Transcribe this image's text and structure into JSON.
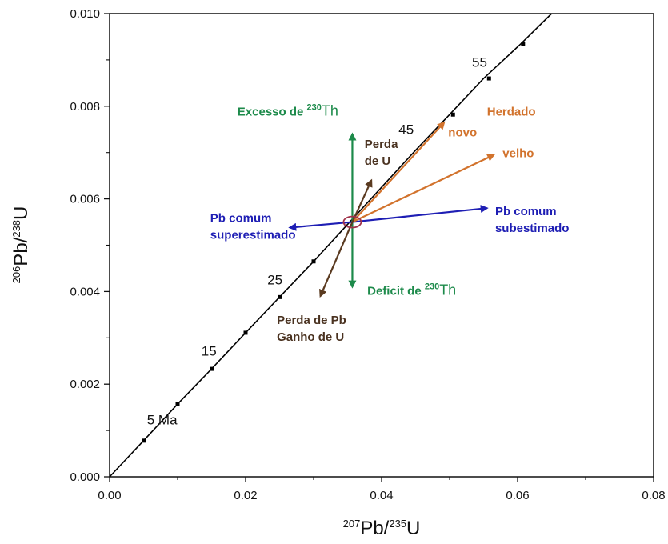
{
  "chart_data": {
    "type": "line",
    "title": "",
    "xlabel": {
      "sup": "207",
      "text": "Pb/",
      "sup2": "235",
      "text2": "U"
    },
    "ylabel": {
      "sup": "206",
      "text": "Pb/",
      "sup2": "238",
      "text2": "U"
    },
    "xlim": [
      0.0,
      0.08
    ],
    "ylim": [
      0.0,
      0.01
    ],
    "x_ticks": [
      "0.00",
      "0.02",
      "0.04",
      "0.06",
      "0.08"
    ],
    "y_ticks": [
      "0.000",
      "0.002",
      "0.004",
      "0.006",
      "0.008",
      "0.010"
    ],
    "grid": false,
    "concordia": {
      "x": [
        0.0,
        0.005,
        0.01,
        0.015,
        0.02,
        0.025,
        0.03,
        0.035,
        0.04,
        0.045,
        0.05,
        0.055,
        0.0605,
        0.065
      ],
      "y": [
        0.0,
        0.00078,
        0.00157,
        0.00233,
        0.00311,
        0.00388,
        0.00465,
        0.00545,
        0.00625,
        0.00705,
        0.00782,
        0.0086,
        0.00935,
        0.01
      ]
    },
    "ticks_on_curve": [
      [
        0.005,
        0.00078
      ],
      [
        0.01,
        0.00157
      ],
      [
        0.015,
        0.00233
      ],
      [
        0.02,
        0.00311
      ],
      [
        0.025,
        0.00388
      ],
      [
        0.03,
        0.00465
      ],
      [
        0.0505,
        0.00782
      ],
      [
        0.0558,
        0.0086
      ],
      [
        0.0608,
        0.00935
      ]
    ],
    "age_labels": [
      {
        "text": "5 Ma",
        "x": 0.0055,
        "y": 0.00113
      },
      {
        "text": "15",
        "x": 0.0135,
        "y": 0.00262
      },
      {
        "text": "25",
        "x": 0.0232,
        "y": 0.00415
      },
      {
        "text": "45",
        "x": 0.0425,
        "y": 0.0074
      },
      {
        "text": "55",
        "x": 0.0533,
        "y": 0.00885
      }
    ],
    "ellipse": {
      "cx": 0.0357,
      "cy": 0.0055,
      "rx": 0.0013,
      "ry": 0.00012,
      "color": "#a0324a"
    },
    "vectors": [
      {
        "color": "#1c8a4a",
        "from": [
          0.0357,
          0.0055
        ],
        "to": [
          0.0357,
          0.0074
        ]
      },
      {
        "color": "#1c8a4a",
        "from": [
          0.0357,
          0.0055
        ],
        "to": [
          0.0357,
          0.0041
        ]
      },
      {
        "color": "#1e1eb4",
        "from": [
          0.0357,
          0.0055
        ],
        "to": [
          0.0555,
          0.0058
        ]
      },
      {
        "color": "#1e1eb4",
        "from": [
          0.0357,
          0.0055
        ],
        "to": [
          0.0265,
          0.00538
        ]
      },
      {
        "color": "#d2732d",
        "from": [
          0.0357,
          0.0055
        ],
        "to": [
          0.0492,
          0.00765
        ]
      },
      {
        "color": "#d2732d",
        "from": [
          0.0357,
          0.0055
        ],
        "to": [
          0.0565,
          0.00695
        ]
      },
      {
        "color": "#5a3a20",
        "from": [
          0.0357,
          0.0055
        ],
        "to": [
          0.0385,
          0.0064
        ]
      },
      {
        "color": "#5a3a20",
        "from": [
          0.0357,
          0.0055
        ],
        "to": [
          0.031,
          0.0039
        ]
      }
    ],
    "annotations": [
      {
        "lines": [
          "Excesso de "
        ],
        "sup": "230",
        "tail": "Th",
        "color": "#1c8a4a",
        "x": 0.0188,
        "y": 0.0078
      },
      {
        "lines": [
          "Deficit de "
        ],
        "sup": "230",
        "tail": "Th",
        "color": "#1c8a4a",
        "x": 0.0379,
        "y": 0.00393
      },
      {
        "lines": [
          "Pb comum",
          "subestimado"
        ],
        "color": "#1e1eb4",
        "x": 0.0567,
        "y": 0.00565
      },
      {
        "lines": [
          "Pb comum",
          "superestimado"
        ],
        "color": "#1e1eb4",
        "x": 0.0148,
        "y": 0.0055
      },
      {
        "lines": [
          "Herdado"
        ],
        "color": "#d2732d",
        "x": 0.0555,
        "y": 0.0078
      },
      {
        "lines": [
          "novo"
        ],
        "color": "#d2732d",
        "x": 0.0498,
        "y": 0.00735
      },
      {
        "lines": [
          "velho"
        ],
        "color": "#d2732d",
        "x": 0.0578,
        "y": 0.0069
      },
      {
        "lines": [
          "Perda",
          "de U"
        ],
        "color": "#4a3220",
        "x": 0.0375,
        "y": 0.0071
      },
      {
        "lines": [
          "Perda de Pb",
          "Ganho de U"
        ],
        "color": "#4a3220",
        "x": 0.0246,
        "y": 0.0033
      }
    ],
    "colors": {
      "axis": "#111111",
      "concordia": "#000000"
    }
  }
}
